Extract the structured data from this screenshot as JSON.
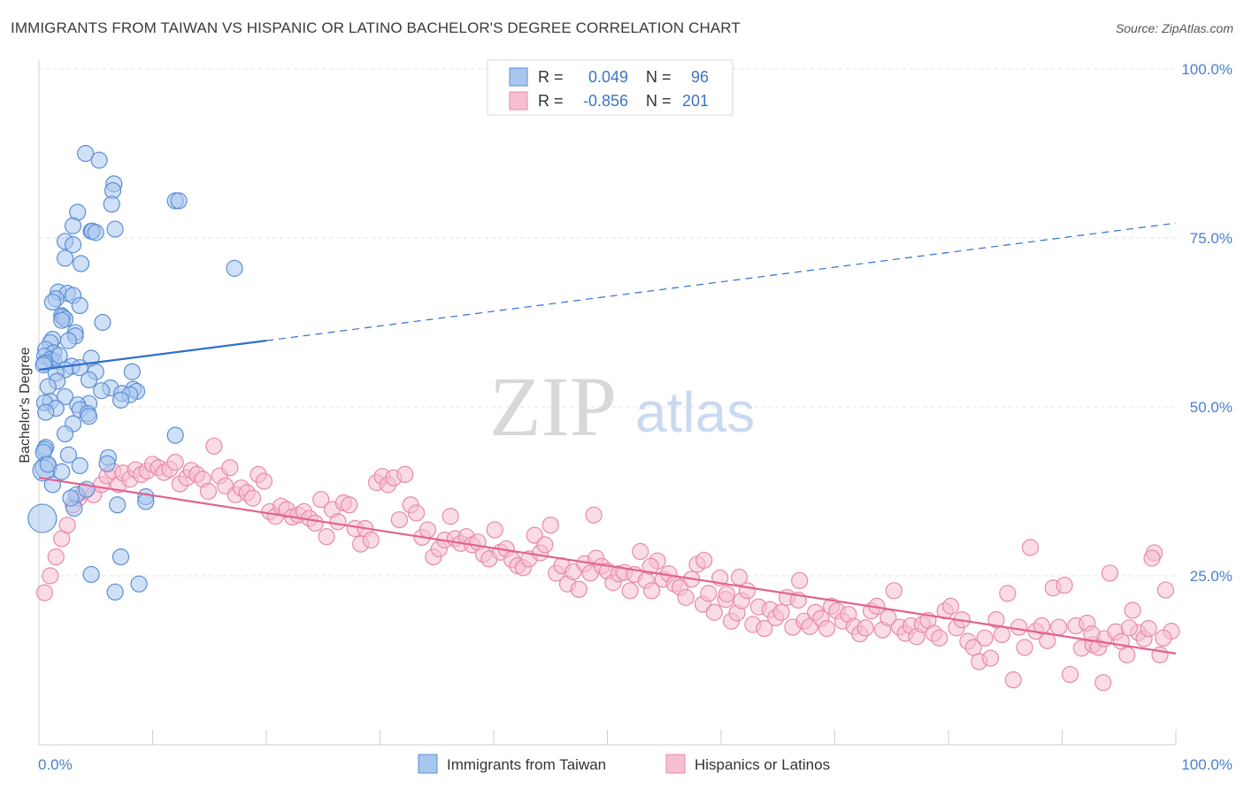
{
  "title": "IMMIGRANTS FROM TAIWAN VS HISPANIC OR LATINO BACHELOR'S DEGREE CORRELATION CHART",
  "source": "Source: ZipAtlas.com",
  "watermark": {
    "zip": "ZIP",
    "atlas": "atlas"
  },
  "colors": {
    "blue_fill": "#a9c6ee",
    "blue_stroke": "#5b8fd6",
    "blue_line": "#2f6fcf",
    "pink_fill": "#f6bfd1",
    "pink_stroke": "#e889a8",
    "pink_line": "#e0648f",
    "grid": "#e3e3e3",
    "axis_label": "#4a7fc9"
  },
  "chart_data": {
    "type": "scatter",
    "xlabel": "",
    "ylabel": "Bachelor's Degree",
    "xlim": [
      0,
      100
    ],
    "ylim": [
      0,
      100
    ],
    "x_tick_labels": [
      "0.0%",
      "100.0%"
    ],
    "y_tick_labels": [
      "25.0%",
      "50.0%",
      "75.0%",
      "100.0%"
    ],
    "y_ticks": [
      25,
      50,
      75,
      100
    ],
    "grid": true,
    "legend_top": [
      {
        "r_label": "R =",
        "r_value": "0.049",
        "n_label": "N =",
        "n_value": "96"
      },
      {
        "r_label": "R =",
        "r_value": "-0.856",
        "n_label": "N =",
        "n_value": "201"
      }
    ],
    "series": [
      {
        "name": "Immigrants from Taiwan",
        "color": "#a9c6ee",
        "trend": {
          "x": [
            0,
            20
          ],
          "y": [
            55.5,
            59.8
          ],
          "dashed_to": [
            100,
            77.2
          ]
        },
        "points": [
          [
            4.1,
            87.5
          ],
          [
            5.3,
            86.5
          ],
          [
            6.6,
            83
          ],
          [
            6.5,
            82
          ],
          [
            12.0,
            80.5
          ],
          [
            12.3,
            80.5
          ],
          [
            6.4,
            80
          ],
          [
            3.4,
            78.8
          ],
          [
            3.0,
            76.8
          ],
          [
            6.7,
            76.3
          ],
          [
            4.6,
            76
          ],
          [
            4.7,
            76
          ],
          [
            5.0,
            75.8
          ],
          [
            2.3,
            74.5
          ],
          [
            3.0,
            74
          ],
          [
            2.3,
            72
          ],
          [
            3.7,
            71.2
          ],
          [
            17.2,
            70.5
          ],
          [
            1.7,
            67
          ],
          [
            2.5,
            66.8
          ],
          [
            3.0,
            66.5
          ],
          [
            1.5,
            66
          ],
          [
            1.2,
            65.5
          ],
          [
            3.6,
            65
          ],
          [
            2.0,
            63.5
          ],
          [
            2.1,
            63.3
          ],
          [
            2.3,
            63
          ],
          [
            2.0,
            62.8
          ],
          [
            5.6,
            62.5
          ],
          [
            3.2,
            61
          ],
          [
            3.2,
            60.5
          ],
          [
            1.2,
            60
          ],
          [
            2.6,
            59.8
          ],
          [
            1.0,
            59.5
          ],
          [
            0.6,
            58.5
          ],
          [
            1.3,
            58
          ],
          [
            0.5,
            57.5
          ],
          [
            4.6,
            57.2
          ],
          [
            1.0,
            57
          ],
          [
            1.3,
            56.8
          ],
          [
            0.5,
            56.5
          ],
          [
            0.4,
            56.2
          ],
          [
            2.9,
            56
          ],
          [
            3.6,
            55.8
          ],
          [
            2.3,
            55.5
          ],
          [
            5.0,
            55.2
          ],
          [
            8.2,
            55.2
          ],
          [
            1.5,
            55
          ],
          [
            4.4,
            54
          ],
          [
            1.6,
            53.8
          ],
          [
            0.8,
            53
          ],
          [
            6.3,
            52.8
          ],
          [
            8.3,
            52.6
          ],
          [
            8.6,
            52.3
          ],
          [
            7.3,
            52
          ],
          [
            8.0,
            51.8
          ],
          [
            2.3,
            51.5
          ],
          [
            7.2,
            51
          ],
          [
            1.0,
            50.8
          ],
          [
            0.5,
            50.6
          ],
          [
            4.4,
            50.5
          ],
          [
            3.4,
            50.3
          ],
          [
            1.5,
            49.8
          ],
          [
            3.6,
            49.6
          ],
          [
            0.6,
            49.2
          ],
          [
            4.3,
            49
          ],
          [
            3.0,
            47.5
          ],
          [
            4.4,
            48.6
          ],
          [
            2.3,
            46
          ],
          [
            12.0,
            45.8
          ],
          [
            0.6,
            44
          ],
          [
            0.5,
            43.7
          ],
          [
            0.4,
            43.3
          ],
          [
            2.6,
            42.9
          ],
          [
            6.1,
            42.5
          ],
          [
            6.0,
            41.6
          ],
          [
            3.6,
            41.3
          ],
          [
            0.6,
            41
          ],
          [
            0.4,
            40.6
          ],
          [
            3.3,
            37
          ],
          [
            9.4,
            36.7
          ],
          [
            9.4,
            36
          ],
          [
            3.1,
            35
          ],
          [
            6.9,
            35.5
          ],
          [
            0.3,
            33.5
          ],
          [
            7.2,
            27.8
          ],
          [
            4.6,
            25.2
          ],
          [
            8.8,
            23.8
          ],
          [
            6.7,
            22.6
          ],
          [
            2.8,
            36.5
          ],
          [
            4.2,
            37.8
          ],
          [
            1.2,
            38.5
          ],
          [
            0.8,
            41.5
          ],
          [
            2.0,
            40.4
          ],
          [
            5.5,
            52.4
          ],
          [
            1.8,
            57.6
          ]
        ]
      },
      {
        "name": "Hispanics or Latinos",
        "color": "#f6bfd1",
        "trend": {
          "x": [
            0,
            100
          ],
          "y": [
            39.5,
            13.5
          ]
        },
        "points": [
          [
            0.5,
            22.5
          ],
          [
            1.0,
            25
          ],
          [
            1.5,
            27.8
          ],
          [
            2.0,
            30.5
          ],
          [
            2.5,
            32.5
          ],
          [
            3.0,
            35.5
          ],
          [
            3.5,
            36.5
          ],
          [
            4.0,
            37.5
          ],
          [
            4.8,
            37
          ],
          [
            5.5,
            38.5
          ],
          [
            6.0,
            39.8
          ],
          [
            6.5,
            40.5
          ],
          [
            7.0,
            38.5
          ],
          [
            7.4,
            40.2
          ],
          [
            8.0,
            39.3
          ],
          [
            8.5,
            40.7
          ],
          [
            9.0,
            40
          ],
          [
            9.5,
            40.5
          ],
          [
            10.0,
            41.5
          ],
          [
            10.5,
            41
          ],
          [
            11.0,
            40.3
          ],
          [
            11.5,
            40.8
          ],
          [
            12.0,
            41.8
          ],
          [
            12.4,
            38.6
          ],
          [
            13.0,
            39.5
          ],
          [
            13.4,
            40.6
          ],
          [
            13.9,
            40
          ],
          [
            14.4,
            39.3
          ],
          [
            14.9,
            37.5
          ],
          [
            15.4,
            44.2
          ],
          [
            15.9,
            39.8
          ],
          [
            16.4,
            38.3
          ],
          [
            16.8,
            41
          ],
          [
            17.3,
            37
          ],
          [
            17.8,
            38
          ],
          [
            18.3,
            37.3
          ],
          [
            18.8,
            36.5
          ],
          [
            19.3,
            40
          ],
          [
            19.8,
            39
          ],
          [
            20.3,
            34.5
          ],
          [
            20.8,
            33.8
          ],
          [
            21.3,
            35.3
          ],
          [
            21.8,
            34.8
          ],
          [
            22.3,
            33.7
          ],
          [
            22.8,
            34
          ],
          [
            23.3,
            34.5
          ],
          [
            23.8,
            33.5
          ],
          [
            24.3,
            32.8
          ],
          [
            24.8,
            36.3
          ],
          [
            25.3,
            30.8
          ],
          [
            25.8,
            34.8
          ],
          [
            26.3,
            33
          ],
          [
            26.8,
            35.8
          ],
          [
            27.3,
            35.5
          ],
          [
            27.8,
            32
          ],
          [
            28.3,
            29.7
          ],
          [
            28.7,
            32
          ],
          [
            29.2,
            30.3
          ],
          [
            29.7,
            38.8
          ],
          [
            30.2,
            39.7
          ],
          [
            30.7,
            38.5
          ],
          [
            31.2,
            39.5
          ],
          [
            31.7,
            33.3
          ],
          [
            32.2,
            40
          ],
          [
            32.7,
            35.5
          ],
          [
            33.2,
            34.3
          ],
          [
            33.7,
            30.7
          ],
          [
            34.2,
            31.8
          ],
          [
            34.7,
            27.8
          ],
          [
            35.2,
            29
          ],
          [
            35.7,
            30.3
          ],
          [
            36.2,
            33.8
          ],
          [
            36.6,
            30.5
          ],
          [
            37.1,
            29.8
          ],
          [
            37.6,
            30.8
          ],
          [
            38.1,
            29.6
          ],
          [
            38.6,
            30
          ],
          [
            39.1,
            28.2
          ],
          [
            39.6,
            27.5
          ],
          [
            40.1,
            31.8
          ],
          [
            40.6,
            28.5
          ],
          [
            41.1,
            29
          ],
          [
            41.6,
            27.4
          ],
          [
            42.1,
            26.5
          ],
          [
            42.6,
            26.2
          ],
          [
            43.1,
            27.5
          ],
          [
            43.6,
            31
          ],
          [
            44.1,
            28.4
          ],
          [
            44.5,
            29.6
          ],
          [
            45.0,
            32.5
          ],
          [
            45.5,
            25.4
          ],
          [
            46.0,
            26.5
          ],
          [
            46.5,
            23.8
          ],
          [
            47.0,
            25.6
          ],
          [
            47.5,
            23
          ],
          [
            48.0,
            26.8
          ],
          [
            48.5,
            25.4
          ],
          [
            49.0,
            27.6
          ],
          [
            49.5,
            26.4
          ],
          [
            50.0,
            25.7
          ],
          [
            50.5,
            24
          ],
          [
            51.0,
            25.3
          ],
          [
            51.5,
            25.5
          ],
          [
            52.0,
            22.8
          ],
          [
            52.4,
            25.2
          ],
          [
            52.9,
            28.6
          ],
          [
            53.4,
            24.3
          ],
          [
            53.9,
            22.8
          ],
          [
            54.4,
            27.2
          ],
          [
            54.9,
            24.5
          ],
          [
            55.4,
            25.3
          ],
          [
            55.9,
            23.8
          ],
          [
            56.4,
            23.3
          ],
          [
            56.9,
            21.8
          ],
          [
            57.4,
            24.5
          ],
          [
            57.9,
            26.7
          ],
          [
            58.4,
            20.8
          ],
          [
            58.9,
            22.4
          ],
          [
            59.4,
            19.6
          ],
          [
            59.9,
            24.7
          ],
          [
            60.4,
            21.5
          ],
          [
            60.9,
            18.3
          ],
          [
            61.4,
            19.5
          ],
          [
            61.8,
            21.3
          ],
          [
            62.3,
            22.8
          ],
          [
            62.8,
            17.8
          ],
          [
            63.3,
            20.4
          ],
          [
            63.8,
            17.2
          ],
          [
            64.3,
            20
          ],
          [
            64.8,
            18.8
          ],
          [
            65.3,
            19.6
          ],
          [
            65.8,
            21.8
          ],
          [
            66.3,
            17.4
          ],
          [
            66.8,
            21.4
          ],
          [
            67.3,
            18.3
          ],
          [
            67.8,
            17.5
          ],
          [
            68.3,
            19.6
          ],
          [
            68.8,
            18.7
          ],
          [
            69.3,
            17.2
          ],
          [
            69.7,
            20.5
          ],
          [
            70.2,
            19.8
          ],
          [
            70.7,
            18.3
          ],
          [
            71.2,
            19.3
          ],
          [
            71.7,
            17.5
          ],
          [
            72.2,
            16.4
          ],
          [
            72.7,
            17.3
          ],
          [
            73.2,
            19.8
          ],
          [
            73.7,
            20.5
          ],
          [
            74.2,
            17
          ],
          [
            74.7,
            18.8
          ],
          [
            75.2,
            22.8
          ],
          [
            75.7,
            17.4
          ],
          [
            76.2,
            16.5
          ],
          [
            76.7,
            17.6
          ],
          [
            77.2,
            16
          ],
          [
            77.7,
            17.8
          ],
          [
            78.2,
            18.4
          ],
          [
            78.7,
            16.5
          ],
          [
            79.2,
            15.8
          ],
          [
            79.7,
            19.8
          ],
          [
            80.2,
            20.5
          ],
          [
            80.7,
            17.3
          ],
          [
            81.2,
            18.5
          ],
          [
            81.7,
            15.3
          ],
          [
            82.2,
            14.4
          ],
          [
            82.7,
            12.3
          ],
          [
            83.2,
            15.8
          ],
          [
            83.7,
            12.8
          ],
          [
            84.2,
            18.5
          ],
          [
            84.7,
            16.3
          ],
          [
            85.2,
            22.4
          ],
          [
            85.7,
            9.6
          ],
          [
            86.2,
            17.4
          ],
          [
            86.7,
            14.4
          ],
          [
            87.2,
            29.2
          ],
          [
            87.7,
            16.8
          ],
          [
            88.2,
            17.6
          ],
          [
            88.7,
            15.4
          ],
          [
            89.2,
            23.2
          ],
          [
            89.7,
            17.4
          ],
          [
            90.2,
            23.6
          ],
          [
            90.7,
            10.4
          ],
          [
            91.2,
            17.6
          ],
          [
            91.7,
            14.3
          ],
          [
            92.2,
            18
          ],
          [
            92.7,
            14.8
          ],
          [
            93.2,
            14.4
          ],
          [
            93.7,
            15.7
          ],
          [
            94.2,
            25.4
          ],
          [
            94.7,
            16.7
          ],
          [
            95.2,
            15.3
          ],
          [
            95.7,
            13.3
          ],
          [
            96.2,
            19.9
          ],
          [
            96.7,
            16.6
          ],
          [
            97.2,
            15.7
          ],
          [
            97.6,
            17.2
          ],
          [
            98.1,
            28.4
          ],
          [
            98.6,
            13.3
          ],
          [
            99.1,
            22.9
          ],
          [
            99.6,
            16.8
          ],
          [
            93.6,
            9.2
          ],
          [
            92.6,
            16.4
          ],
          [
            95.9,
            17.3
          ],
          [
            97.9,
            27.6
          ],
          [
            98.9,
            15.8
          ],
          [
            61.6,
            24.8
          ],
          [
            66.9,
            24.3
          ],
          [
            60.5,
            22.3
          ],
          [
            58.5,
            27.3
          ],
          [
            53.8,
            26.4
          ],
          [
            48.8,
            34
          ]
        ]
      }
    ]
  }
}
